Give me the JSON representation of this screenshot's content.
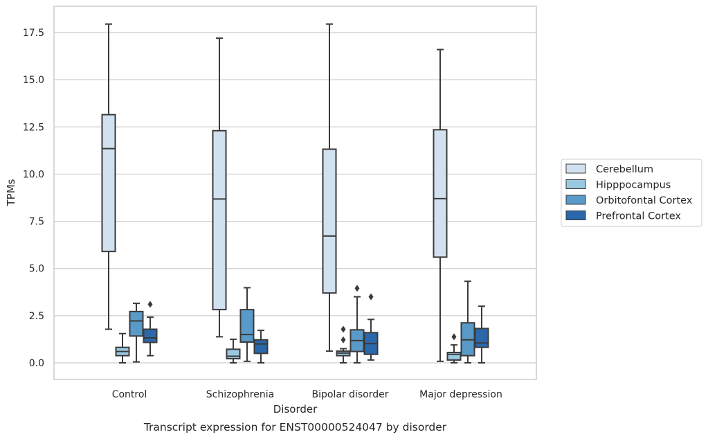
{
  "chart_data": {
    "type": "box",
    "title": "",
    "caption": "Transcript expression for ENST00000524047 by disorder",
    "xlabel": "Disorder",
    "ylabel": "TPMs",
    "categories": [
      "Control",
      "Schizophrenia",
      "Bipolar disorder",
      "Major depression"
    ],
    "ylim": [
      -0.9,
      18.8
    ],
    "yticks": [
      0.0,
      2.5,
      5.0,
      7.5,
      10.0,
      12.5,
      15.0,
      17.5
    ],
    "ytick_labels": [
      "0.0",
      "2.5",
      "5.0",
      "7.5",
      "10.0",
      "12.5",
      "15.0",
      "17.5"
    ],
    "grid": "horizontal",
    "legend_position": "right",
    "series": [
      {
        "name": "Cerebellum",
        "color": "#d2e1f0",
        "boxes": [
          {
            "min": 1.78,
            "q1": 5.9,
            "median": 11.35,
            "q3": 13.15,
            "max": 17.95,
            "outliers": []
          },
          {
            "min": 1.38,
            "q1": 2.82,
            "median": 8.68,
            "q3": 12.3,
            "max": 17.2,
            "outliers": []
          },
          {
            "min": 0.62,
            "q1": 3.7,
            "median": 6.72,
            "q3": 11.32,
            "max": 17.95,
            "outliers": []
          },
          {
            "min": 0.08,
            "q1": 5.6,
            "median": 8.7,
            "q3": 12.35,
            "max": 16.6,
            "outliers": []
          }
        ]
      },
      {
        "name": "Hipppocampus",
        "color": "#9ac8e0",
        "boxes": [
          {
            "min": 0.0,
            "q1": 0.38,
            "median": 0.6,
            "q3": 0.82,
            "max": 1.55,
            "outliers": []
          },
          {
            "min": 0.0,
            "q1": 0.22,
            "median": 0.35,
            "q3": 0.72,
            "max": 1.25,
            "outliers": []
          },
          {
            "min": 0.0,
            "q1": 0.38,
            "median": 0.52,
            "q3": 0.62,
            "max": 0.75,
            "outliers": [
              1.22,
              1.78
            ]
          },
          {
            "min": 0.0,
            "q1": 0.15,
            "median": 0.45,
            "q3": 0.55,
            "max": 0.95,
            "outliers": [
              1.38
            ]
          }
        ]
      },
      {
        "name": "Orbitofontal Cortex",
        "color": "#5a9ac8",
        "boxes": [
          {
            "min": 0.05,
            "q1": 1.42,
            "median": 2.22,
            "q3": 2.72,
            "max": 3.15,
            "outliers": []
          },
          {
            "min": 0.08,
            "q1": 1.1,
            "median": 1.5,
            "q3": 2.82,
            "max": 3.98,
            "outliers": []
          },
          {
            "min": 0.0,
            "q1": 0.6,
            "median": 1.18,
            "q3": 1.75,
            "max": 3.5,
            "outliers": [
              3.95
            ]
          },
          {
            "min": 0.0,
            "q1": 0.38,
            "median": 1.22,
            "q3": 2.12,
            "max": 4.32,
            "outliers": []
          }
        ]
      },
      {
        "name": "Prefrontal Cortex",
        "color": "#2a68ab",
        "boxes": [
          {
            "min": 0.38,
            "q1": 1.08,
            "median": 1.32,
            "q3": 1.78,
            "max": 2.42,
            "outliers": [
              3.1
            ]
          },
          {
            "min": 0.0,
            "q1": 0.5,
            "median": 1.0,
            "q3": 1.22,
            "max": 1.72,
            "outliers": []
          },
          {
            "min": 0.15,
            "q1": 0.45,
            "median": 1.02,
            "q3": 1.6,
            "max": 2.3,
            "outliers": [
              3.5
            ]
          },
          {
            "min": 0.0,
            "q1": 0.82,
            "median": 1.05,
            "q3": 1.82,
            "max": 3.0,
            "outliers": []
          }
        ]
      }
    ]
  }
}
